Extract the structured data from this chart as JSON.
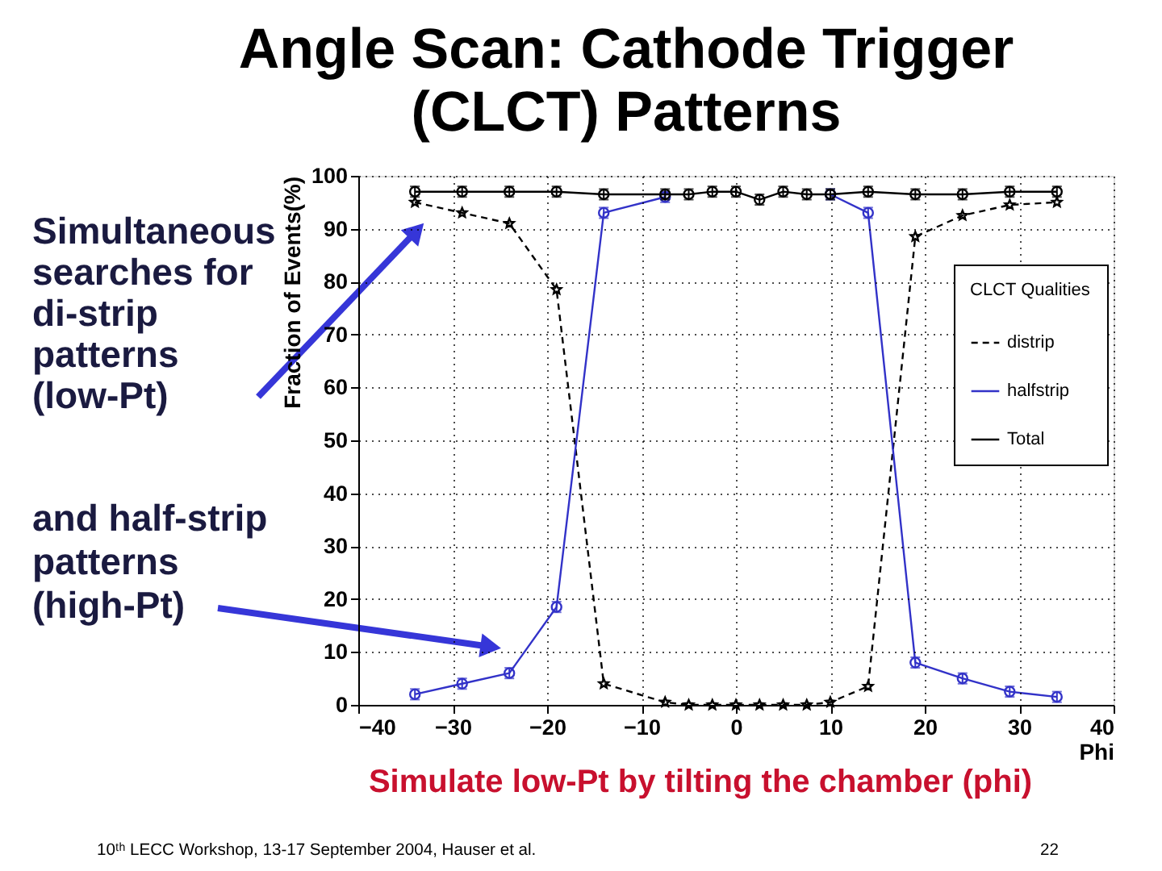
{
  "chart_data": {
    "type": "line",
    "title": "Angle Scan: Cathode Trigger (CLCT) Patterns",
    "xlabel": "Phi",
    "ylabel": "Fraction of Events(%)",
    "legend_title": "CLCT Qualities",
    "x": [
      -34,
      -29,
      -24,
      -19,
      -14,
      -7.5,
      -5,
      -2.5,
      0,
      2.5,
      5,
      7.5,
      10,
      14,
      19,
      24,
      29,
      34
    ],
    "series": [
      {
        "name": "distrip",
        "color": "#000000",
        "line_style": "dashed",
        "marker": "star",
        "values": [
          95,
          93,
          91,
          78.5,
          4,
          0.5,
          0,
          0,
          0,
          0,
          0,
          0,
          0.5,
          3.5,
          88.5,
          92.5,
          94.5,
          95
        ]
      },
      {
        "name": "halfstrip",
        "color": "#3232c8",
        "line_style": "solid",
        "marker": "circle",
        "values": [
          2,
          4,
          6,
          18.5,
          93,
          96,
          null,
          null,
          null,
          null,
          null,
          null,
          96.5,
          93,
          8,
          5,
          2.5,
          1.5
        ],
        "errors": [
          1,
          1,
          1,
          1,
          1,
          1,
          null,
          null,
          null,
          null,
          null,
          null,
          1,
          1,
          1,
          1,
          1,
          1
        ]
      },
      {
        "name": "Total",
        "color": "#000000",
        "line_style": "solid",
        "marker": "circle",
        "values": [
          97,
          97,
          97,
          97,
          96.5,
          96.5,
          96.5,
          97,
          97,
          95.5,
          97,
          96.5,
          96.5,
          97,
          96.5,
          96.5,
          97,
          97
        ],
        "errors": [
          1,
          1,
          1,
          1,
          1,
          1,
          1,
          1,
          1,
          1,
          1,
          1,
          1,
          1,
          1,
          1,
          1,
          1
        ]
      }
    ],
    "xlim": [
      -40,
      40
    ],
    "xticks": [
      -40,
      -30,
      -20,
      -10,
      0,
      10,
      20,
      30,
      40
    ],
    "ylim": [
      0,
      100
    ],
    "yticks": [
      0,
      10,
      20,
      30,
      40,
      50,
      60,
      70,
      80,
      90,
      100
    ],
    "grid": true,
    "legend": "right",
    "annotations": [
      "Simultaneous searches for di-strip patterns (low-Pt)",
      "and half-strip patterns (high-Pt)",
      "Simulate low-Pt by tilting the chamber (phi)",
      "10ᵗʰ LECC Workshop, 13-17 September 2004, Hauser et al.",
      "22"
    ]
  }
}
